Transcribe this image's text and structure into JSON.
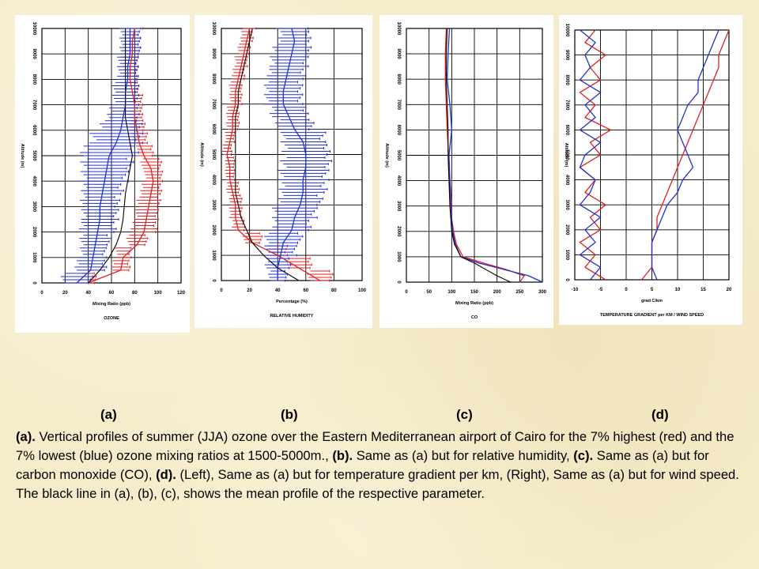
{
  "panel_labels": [
    "(a)",
    "(b)",
    "(c)",
    "(d)"
  ],
  "caption": {
    "p1_tag": "(a).",
    "p1": " Vertical profiles of summer (JJA)  ozone over the Eastern Mediterranean airport of Cairo for the 7% highest (red) and the 7% lowest (blue) ozone mixing ratios at 1500-5000m., ",
    "p2_tag": "(b).",
    "p2": " Same as (a) but for relative humidity, ",
    "p3_tag": "(c).",
    "p3": " Same as (a) but for carbon monoxide (CO), ",
    "p4_tag": "(d).",
    "p4": " (Left), Same as (a) but for temperature gradient per km, (Right), Same as (a) but for wind speed. The black line in (a), (b), (c), shows the mean profile of the respective parameter."
  },
  "colors": {
    "high": "#e02020",
    "low": "#2030d0",
    "mean": "#000000",
    "grid": "#000000"
  },
  "chart_data": [
    {
      "id": "a",
      "type": "line",
      "title": "OZONE",
      "xlabel": "Mixing Ratio (ppb)",
      "ylabel": "Altitude (m)",
      "xlim": [
        0,
        120
      ],
      "ylim": [
        0,
        10000
      ],
      "xticks": [
        0,
        20,
        40,
        60,
        80,
        100,
        120
      ],
      "yticks": [
        0,
        1000,
        2000,
        3000,
        4000,
        5000,
        6000,
        7000,
        8000,
        9000,
        10000
      ],
      "altitude": [
        0,
        500,
        1000,
        1500,
        2000,
        2500,
        3000,
        3500,
        4000,
        4500,
        5000,
        5500,
        6000,
        6500,
        7000,
        7500,
        8000,
        8500,
        9000,
        9500,
        10000
      ],
      "series": [
        {
          "name": "high",
          "values": [
            40,
            68,
            70,
            82,
            88,
            90,
            92,
            94,
            96,
            94,
            88,
            84,
            82,
            80,
            80,
            78,
            76,
            76,
            78,
            78,
            80
          ],
          "error": [
            6,
            7,
            6,
            8,
            10,
            9,
            9,
            8,
            7,
            8,
            7,
            6,
            6,
            6,
            6,
            5,
            5,
            6,
            6,
            6,
            6
          ]
        },
        {
          "name": "low",
          "values": [
            30,
            42,
            44,
            46,
            48,
            50,
            50,
            52,
            54,
            56,
            58,
            64,
            68,
            70,
            72,
            72,
            74,
            74,
            76,
            76,
            76
          ],
          "error": [
            12,
            12,
            10,
            12,
            14,
            14,
            15,
            16,
            18,
            20,
            22,
            20,
            16,
            12,
            10,
            10,
            8,
            8,
            8,
            8,
            8
          ]
        },
        {
          "name": "mean",
          "values": [
            40,
            50,
            58,
            64,
            68,
            70,
            71,
            72,
            74,
            76,
            78,
            76,
            74,
            72,
            72,
            72,
            72,
            72,
            72,
            72,
            72
          ]
        }
      ]
    },
    {
      "id": "b",
      "type": "line",
      "title": "RELATIVE HUMIDITY",
      "xlabel": "Percentage (%)",
      "ylabel": "Altitude (m)",
      "xlim": [
        0,
        100
      ],
      "ylim": [
        0,
        10000
      ],
      "xticks": [
        0,
        20,
        40,
        60,
        80,
        100
      ],
      "yticks": [
        0,
        1000,
        2000,
        3000,
        4000,
        5000,
        6000,
        7000,
        8000,
        9000,
        10000
      ],
      "altitude": [
        0,
        500,
        1000,
        1500,
        2000,
        2500,
        3000,
        3500,
        4000,
        4500,
        5000,
        5500,
        6000,
        6500,
        7000,
        7500,
        8000,
        8500,
        9000,
        9500,
        10000
      ],
      "series": [
        {
          "name": "high",
          "values": [
            70,
            55,
            40,
            22,
            12,
            10,
            10,
            8,
            6,
            6,
            4,
            6,
            8,
            8,
            10,
            10,
            12,
            14,
            16,
            18,
            20
          ],
          "error": [
            8,
            8,
            6,
            6,
            4,
            4,
            4,
            4,
            3,
            3,
            3,
            3,
            4,
            4,
            4,
            4,
            4,
            4,
            4,
            4,
            4
          ]
        },
        {
          "name": "low",
          "values": [
            40,
            40,
            42,
            44,
            50,
            52,
            56,
            58,
            58,
            60,
            60,
            58,
            52,
            48,
            44,
            44,
            46,
            48,
            50,
            52,
            50
          ],
          "error": [
            6,
            8,
            10,
            12,
            12,
            14,
            14,
            15,
            16,
            16,
            15,
            14,
            12,
            12,
            12,
            12,
            12,
            12,
            12,
            10,
            10
          ]
        },
        {
          "name": "mean",
          "values": [
            55,
            40,
            30,
            22,
            18,
            14,
            12,
            10,
            10,
            10,
            10,
            10,
            10,
            10,
            12,
            12,
            14,
            16,
            18,
            20,
            22
          ]
        }
      ]
    },
    {
      "id": "c",
      "type": "line",
      "title": "CO",
      "xlabel": "Mixing Ratio (ppb)",
      "ylabel": "Altitude (m)",
      "xlim": [
        0,
        300
      ],
      "ylim": [
        0,
        10000
      ],
      "xticks": [
        0,
        50,
        100,
        150,
        200,
        250,
        300
      ],
      "yticks": [
        0,
        1000,
        2000,
        3000,
        4000,
        5000,
        6000,
        7000,
        8000,
        9000,
        10000
      ],
      "altitude": [
        0,
        250,
        500,
        750,
        1000,
        1500,
        2000,
        2500,
        3000,
        3500,
        4000,
        4500,
        5000,
        6000,
        7000,
        8000,
        9000,
        10000
      ],
      "series": [
        {
          "name": "high",
          "values": [
            250,
            260,
            220,
            170,
            125,
            110,
            104,
            100,
            98,
            96,
            95,
            94,
            93,
            90,
            88,
            86,
            86,
            88
          ]
        },
        {
          "name": "low",
          "values": [
            300,
            270,
            215,
            160,
            120,
            108,
            102,
            100,
            100,
            98,
            96,
            95,
            94,
            100,
            96,
            90,
            92,
            95
          ]
        },
        {
          "name": "mean",
          "values": [
            230,
            200,
            175,
            150,
            120,
            106,
            100,
            98,
            96,
            95,
            94,
            93,
            92,
            92,
            90,
            88,
            88,
            90
          ]
        }
      ]
    },
    {
      "id": "d",
      "type": "line",
      "title": "TEMPERATURE GRADIENT per KM / WIND SPEED",
      "xlabel": "grad C/km",
      "ylabel": "Altitude (m)",
      "xlim": [
        -10,
        20
      ],
      "ylim": [
        0,
        10000
      ],
      "xticks": [
        -10,
        -5,
        0,
        5,
        10,
        15,
        20
      ],
      "yticks": [
        0,
        1000,
        2000,
        3000,
        4000,
        5000,
        6000,
        7000,
        8000,
        9000,
        10000
      ],
      "altitude": [
        0,
        500,
        1000,
        1500,
        2000,
        2500,
        3000,
        3500,
        4000,
        4500,
        5000,
        5500,
        6000,
        6500,
        7000,
        7500,
        8000,
        8500,
        9000,
        9500,
        10000
      ],
      "series": [
        {
          "name": "temp-gradient-high",
          "values": [
            -4,
            -8,
            -6,
            -9,
            -5,
            -7,
            -4,
            -8,
            -6,
            -9,
            -5,
            -7,
            -3,
            -8,
            -6,
            -9,
            -5,
            -7,
            -4,
            -8,
            -6
          ]
        },
        {
          "name": "temp-gradient-low",
          "values": [
            -7,
            -5,
            -9,
            -6,
            -8,
            -5,
            -9,
            -7,
            -6,
            -9,
            -8,
            -5,
            -9,
            -6,
            -8,
            -5,
            -9,
            -7,
            -8,
            -6,
            -9
          ]
        },
        {
          "name": "wind-speed-high",
          "values": [
            3,
            5,
            5,
            5,
            6,
            6,
            7,
            8,
            9,
            10,
            11,
            12,
            13,
            14,
            15,
            16,
            17,
            18,
            18,
            19,
            20
          ]
        },
        {
          "name": "wind-speed-low",
          "values": [
            6,
            5,
            5,
            5,
            6,
            7,
            8,
            10,
            11,
            13,
            12,
            11,
            10,
            11,
            12,
            14,
            14,
            15,
            16,
            17,
            18
          ]
        }
      ]
    }
  ]
}
